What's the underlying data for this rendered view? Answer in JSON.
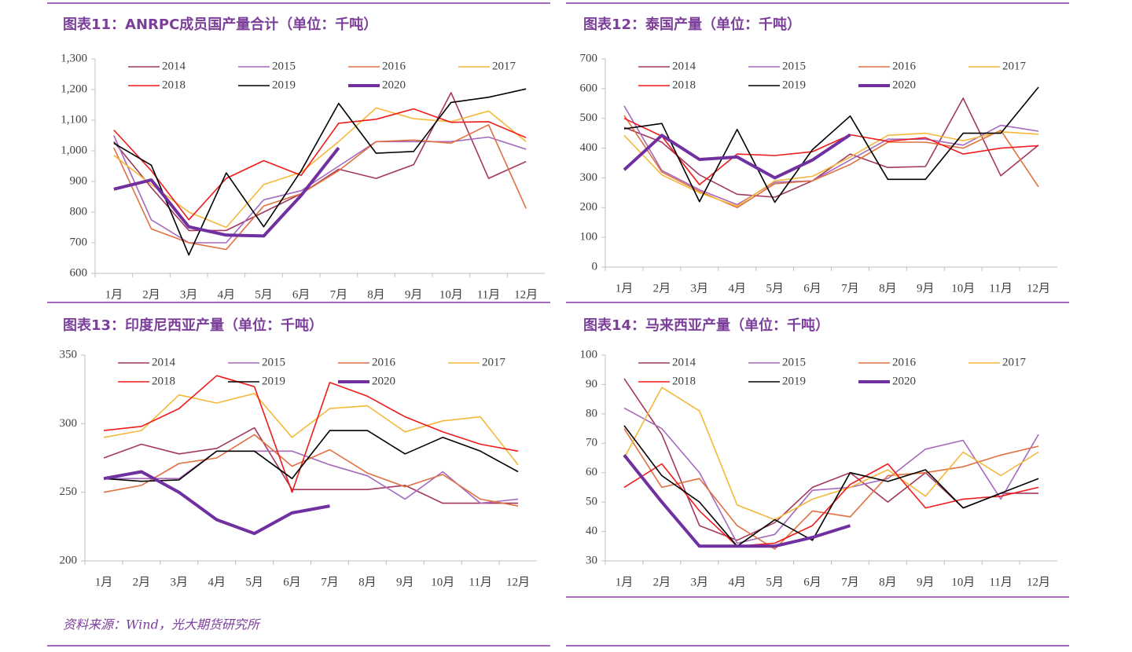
{
  "chart_data": [
    {
      "type": "line",
      "title": "图表11：ANRPC成员国产量合计（单位：千吨）",
      "categories": [
        "1月",
        "2月",
        "3月",
        "4月",
        "5月",
        "6月",
        "7月",
        "8月",
        "9月",
        "10月",
        "11月",
        "12月"
      ],
      "ylim": [
        600,
        1300
      ],
      "yticks": [
        600,
        700,
        800,
        900,
        {
          "value": 1000,
          "label": "1,000"
        },
        {
          "value": 1100,
          "label": "1,100"
        },
        {
          "value": 1200,
          "label": "1,200"
        },
        {
          "value": 1300,
          "label": "1,300"
        }
      ],
      "series": [
        {
          "name": "2014",
          "color": "#a3385e",
          "values": [
            1030,
            880,
            740,
            740,
            800,
            860,
            940,
            910,
            955,
            1190,
            910,
            965
          ]
        },
        {
          "name": "2015",
          "color": "#a569bd",
          "values": [
            1050,
            775,
            700,
            700,
            840,
            870,
            950,
            1030,
            1030,
            1030,
            1045,
            1005
          ]
        },
        {
          "name": "2016",
          "color": "#e07040",
          "values": [
            1010,
            745,
            700,
            678,
            820,
            860,
            935,
            1030,
            1035,
            1025,
            1085,
            812
          ]
        },
        {
          "name": "2017",
          "color": "#f4b83a",
          "values": [
            985,
            890,
            800,
            750,
            890,
            930,
            1030,
            1140,
            1105,
            1095,
            1130,
            1030
          ]
        },
        {
          "name": "2018",
          "color": "#ee1c1c",
          "values": [
            1068,
            935,
            775,
            910,
            968,
            920,
            1090,
            1103,
            1137,
            1093,
            1095,
            1043
          ]
        },
        {
          "name": "2019",
          "color": "#000000",
          "values": [
            1025,
            953,
            660,
            928,
            752,
            935,
            1155,
            992,
            998,
            1158,
            1175,
            1202
          ]
        },
        {
          "name": "2020",
          "color": "#7030a0",
          "values": [
            875,
            905,
            752,
            725,
            722,
            855,
            1010,
            null,
            null,
            null,
            null,
            null
          ]
        }
      ]
    },
    {
      "type": "line",
      "title": "图表12：泰国产量（单位：千吨）",
      "categories": [
        "1月",
        "2月",
        "3月",
        "4月",
        "5月",
        "6月",
        "7月",
        "8月",
        "9月",
        "10月",
        "11月",
        "12月"
      ],
      "ylim": [
        0,
        700
      ],
      "yticks": [
        0,
        100,
        200,
        300,
        400,
        500,
        600,
        700
      ],
      "series": [
        {
          "name": "2014",
          "color": "#a3385e",
          "values": [
            470,
            420,
            310,
            245,
            235,
            290,
            380,
            335,
            338,
            568,
            307,
            410
          ]
        },
        {
          "name": "2015",
          "color": "#a569bd",
          "values": [
            542,
            325,
            260,
            210,
            285,
            290,
            360,
            430,
            430,
            410,
            477,
            457
          ]
        },
        {
          "name": "2016",
          "color": "#e07040",
          "values": [
            510,
            320,
            255,
            200,
            280,
            290,
            345,
            420,
            420,
            400,
            460,
            270
          ]
        },
        {
          "name": "2017",
          "color": "#f4b83a",
          "values": [
            443,
            310,
            250,
            205,
            290,
            305,
            370,
            443,
            450,
            425,
            455,
            447
          ]
        },
        {
          "name": "2018",
          "color": "#ee1c1c",
          "values": [
            500,
            440,
            277,
            380,
            375,
            388,
            445,
            423,
            435,
            380,
            400,
            408
          ]
        },
        {
          "name": "2019",
          "color": "#000000",
          "values": [
            465,
            483,
            220,
            463,
            218,
            395,
            508,
            295,
            295,
            450,
            450,
            605
          ]
        },
        {
          "name": "2020",
          "color": "#7030a0",
          "values": [
            327,
            443,
            362,
            370,
            300,
            360,
            445,
            null,
            null,
            null,
            null,
            null
          ]
        }
      ]
    },
    {
      "type": "line",
      "title": "图表13：印度尼西亚产量（单位：千吨）",
      "categories": [
        "1月",
        "2月",
        "3月",
        "4月",
        "5月",
        "6月",
        "7月",
        "8月",
        "9月",
        "10月",
        "11月",
        "12月"
      ],
      "ylim": [
        200,
        350
      ],
      "yticks": [
        200,
        250,
        300,
        350
      ],
      "series": [
        {
          "name": "2014",
          "color": "#a3385e",
          "values": [
            275,
            285,
            278,
            282,
            297,
            252,
            252,
            252,
            255,
            242,
            242,
            242
          ]
        },
        {
          "name": "2015",
          "color": "#a569bd",
          "values": [
            260,
            260,
            260,
            280,
            280,
            280,
            270,
            262,
            245,
            265,
            242,
            245
          ]
        },
        {
          "name": "2016",
          "color": "#e07040",
          "values": [
            250,
            255,
            271,
            275,
            292,
            269,
            281,
            264,
            254,
            263,
            245,
            240
          ]
        },
        {
          "name": "2017",
          "color": "#f4b83a",
          "values": [
            290,
            295,
            321,
            315,
            322,
            290,
            311,
            313,
            294,
            302,
            305,
            270
          ]
        },
        {
          "name": "2018",
          "color": "#ee1c1c",
          "values": [
            295,
            298,
            311,
            335,
            327,
            250,
            330,
            320,
            305,
            294,
            285,
            280
          ]
        },
        {
          "name": "2019",
          "color": "#000000",
          "values": [
            260,
            258,
            259,
            280,
            280,
            260,
            295,
            295,
            278,
            290,
            280,
            265
          ]
        },
        {
          "name": "2020",
          "color": "#7030a0",
          "values": [
            260,
            265,
            250,
            230,
            220,
            235,
            240,
            null,
            null,
            null,
            null,
            null
          ]
        }
      ]
    },
    {
      "type": "line",
      "title": "图表14：马来西亚产量（单位：千吨）",
      "categories": [
        "1月",
        "2月",
        "3月",
        "4月",
        "5月",
        "6月",
        "7月",
        "8月",
        "9月",
        "10月",
        "11月",
        "12月"
      ],
      "ylim": [
        30,
        100
      ],
      "yticks": [
        30,
        40,
        50,
        60,
        70,
        80,
        90,
        100
      ],
      "series": [
        {
          "name": "2014",
          "color": "#a3385e",
          "values": [
            92,
            73,
            42,
            37,
            43,
            55,
            60,
            50,
            60,
            48,
            53,
            53
          ]
        },
        {
          "name": "2015",
          "color": "#a569bd",
          "values": [
            82,
            75,
            60,
            36,
            39,
            54,
            55,
            58,
            68,
            71,
            51,
            73
          ]
        },
        {
          "name": "2016",
          "color": "#e07040",
          "values": [
            75,
            55,
            58,
            42,
            34,
            47,
            45,
            59,
            60,
            62,
            66,
            69
          ]
        },
        {
          "name": "2017",
          "color": "#f4b83a",
          "values": [
            65,
            89,
            81,
            49,
            44,
            51,
            55,
            61,
            52,
            67,
            59,
            67
          ]
        },
        {
          "name": "2018",
          "color": "#ee1c1c",
          "values": [
            55,
            63,
            47,
            35,
            36,
            42,
            56,
            63,
            48,
            51,
            52,
            55
          ]
        },
        {
          "name": "2019",
          "color": "#000000",
          "values": [
            76,
            59,
            50,
            35,
            44,
            37,
            60,
            57,
            61,
            48,
            53,
            58
          ]
        },
        {
          "name": "2020",
          "color": "#7030a0",
          "values": [
            66,
            50,
            35,
            35,
            35,
            38,
            42,
            null,
            null,
            null,
            null,
            null
          ]
        }
      ]
    }
  ],
  "source": "资料来源：Wind，光大期货研究所"
}
